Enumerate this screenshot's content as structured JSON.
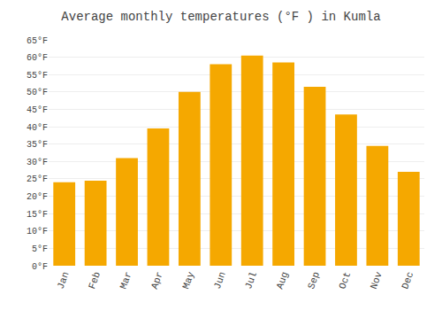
{
  "chart_data": {
    "type": "bar",
    "title": "Average monthly temperatures (°F ) in Kumla",
    "categories": [
      "Jan",
      "Feb",
      "Mar",
      "Apr",
      "May",
      "Jun",
      "Jul",
      "Aug",
      "Sep",
      "Oct",
      "Nov",
      "Dec"
    ],
    "values": [
      24,
      24.5,
      31,
      39.5,
      50,
      58,
      60.5,
      58.5,
      51.5,
      43.5,
      34.5,
      27
    ],
    "color": "#F5A800",
    "ylim": [
      0,
      65
    ],
    "yticks": [
      {
        "value": 0,
        "label": "0°F"
      },
      {
        "value": 5,
        "label": "5°F"
      },
      {
        "value": 10,
        "label": "10°F"
      },
      {
        "value": 15,
        "label": "15°F"
      },
      {
        "value": 20,
        "label": "20°F"
      },
      {
        "value": 25,
        "label": "25°F"
      },
      {
        "value": 30,
        "label": "30°F"
      },
      {
        "value": 35,
        "label": "35°F"
      },
      {
        "value": 40,
        "label": "40°F"
      },
      {
        "value": 45,
        "label": "45°F"
      },
      {
        "value": 50,
        "label": "50°F"
      },
      {
        "value": 55,
        "label": "55°F"
      },
      {
        "value": 60,
        "label": "60°F"
      },
      {
        "value": 65,
        "label": "65°F"
      }
    ],
    "grid": true
  }
}
